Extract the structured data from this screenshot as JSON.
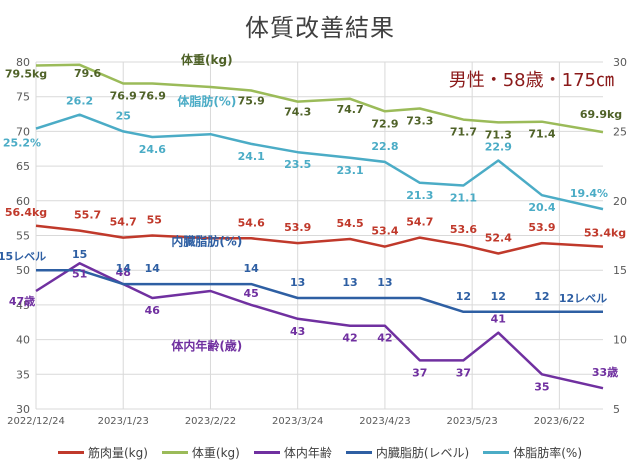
{
  "header": {
    "title": "体質改善結果",
    "subtitle": "男性・58歳・175㎝"
  },
  "colors": {
    "muscle": "#c0392b",
    "weight": "#9bbb59",
    "body_age": "#7030a0",
    "visceral": "#2e5fa3",
    "body_fat": "#4bacc6",
    "grid": "#d9d9d9",
    "axis_text": "#595959"
  },
  "chart_data": {
    "type": "line",
    "x_axis": {
      "ticks": [
        "2022/12/24",
        "2023/1/23",
        "2023/2/22",
        "2023/3/24",
        "2023/4/23",
        "2023/5/23",
        "2023/6/22"
      ],
      "range": [
        "2022/12/24",
        "2023/7/7"
      ]
    },
    "y_left": {
      "range": [
        30,
        80
      ],
      "ticks": [
        30,
        35,
        40,
        45,
        50,
        55,
        60,
        65,
        70,
        75,
        80
      ]
    },
    "y_right": {
      "range": [
        5,
        30
      ],
      "ticks": [
        5,
        10,
        15,
        20,
        25,
        30
      ]
    },
    "grid": true,
    "legend_position": "bottom",
    "series": [
      {
        "key": "muscle",
        "name": "筋肉量(kg)",
        "axis": "left",
        "x": [
          "2022/12/24",
          "2023/1/8",
          "2023/1/23",
          "2023/2/2",
          "2023/2/22",
          "2023/3/8",
          "2023/3/24",
          "2023/4/11",
          "2023/4/23",
          "2023/5/5",
          "2023/5/20",
          "2023/6/1",
          "2023/6/16",
          "2023/7/7"
        ],
        "values": [
          56.4,
          55.7,
          54.7,
          55,
          54.6,
          54.6,
          53.9,
          54.5,
          53.4,
          54.7,
          53.6,
          52.4,
          53.9,
          53.4
        ],
        "labels": [
          "56.4kg",
          "55.7",
          "54.7",
          "55",
          "",
          "54.6",
          "53.9",
          "54.5",
          "53.4",
          "54.7",
          "53.6",
          "52.4",
          "53.9",
          "53.4kg"
        ]
      },
      {
        "key": "weight",
        "name": "体重(kg)",
        "axis": "left",
        "annotation": "体重(kg)",
        "x": [
          "2022/12/24",
          "2023/1/8",
          "2023/1/23",
          "2023/2/2",
          "2023/2/22",
          "2023/3/8",
          "2023/3/24",
          "2023/4/11",
          "2023/4/23",
          "2023/5/5",
          "2023/5/20",
          "2023/6/1",
          "2023/6/16",
          "2023/7/7"
        ],
        "values": [
          79.5,
          79.6,
          76.9,
          76.9,
          76.4,
          75.9,
          74.3,
          74.7,
          72.9,
          73.3,
          71.7,
          71.3,
          71.4,
          69.9
        ],
        "labels": [
          "79.5kg",
          "79.6",
          "76.9",
          "76.9",
          "",
          "75.9",
          "74.3",
          "74.7",
          "72.9",
          "73.3",
          "71.7",
          "71.3",
          "71.4",
          "69.9kg"
        ]
      },
      {
        "key": "body_age",
        "name": "体内年齢",
        "axis": "left",
        "annotation": "体内年齢(歳)",
        "x": [
          "2022/12/24",
          "2023/1/8",
          "2023/1/23",
          "2023/2/2",
          "2023/2/22",
          "2023/3/8",
          "2023/3/24",
          "2023/4/11",
          "2023/4/23",
          "2023/5/5",
          "2023/5/20",
          "2023/6/1",
          "2023/6/16",
          "2023/7/7"
        ],
        "values": [
          47,
          51,
          48,
          46,
          47,
          45,
          43,
          42,
          42,
          37,
          37,
          41,
          35,
          33
        ],
        "labels": [
          "47歳",
          "51",
          "48",
          "46",
          "",
          "45",
          "43",
          "42",
          "42",
          "37",
          "37",
          "41",
          "35",
          "33歳"
        ]
      },
      {
        "key": "visceral",
        "name": "内臓脂肪(レベル)",
        "axis": "right",
        "annotation": "内臓脂肪(%)",
        "x": [
          "2022/12/24",
          "2023/1/8",
          "2023/1/23",
          "2023/2/2",
          "2023/2/22",
          "2023/3/8",
          "2023/3/24",
          "2023/4/11",
          "2023/4/23",
          "2023/5/5",
          "2023/5/20",
          "2023/6/1",
          "2023/6/16",
          "2023/7/7"
        ],
        "values": [
          15,
          15,
          14,
          14,
          14,
          14,
          13,
          13,
          13,
          13,
          12,
          12,
          12,
          12
        ],
        "labels": [
          "15レベル",
          "15",
          "14",
          "14",
          "",
          "14",
          "13",
          "13",
          "13",
          "",
          "12",
          "12",
          "12",
          "12レベル"
        ]
      },
      {
        "key": "body_fat",
        "name": "体脂肪率(%)",
        "axis": "right",
        "annotation": "体脂肪(%)",
        "x": [
          "2022/12/24",
          "2023/1/8",
          "2023/1/23",
          "2023/2/2",
          "2023/2/22",
          "2023/3/8",
          "2023/3/24",
          "2023/4/11",
          "2023/4/23",
          "2023/5/5",
          "2023/5/20",
          "2023/6/1",
          "2023/6/16",
          "2023/7/7"
        ],
        "values": [
          25.2,
          26.2,
          25,
          24.6,
          24.8,
          24.1,
          23.5,
          23.1,
          22.8,
          21.3,
          21.1,
          22.9,
          20.4,
          19.4
        ],
        "labels": [
          "25.2%",
          "26.2",
          "25",
          "24.6",
          "",
          "24.1",
          "23.5",
          "23.1",
          "22.8",
          "21.3",
          "21.1",
          "22.9",
          "20.4",
          "19.4%"
        ]
      }
    ],
    "legend_order": [
      "muscle",
      "weight",
      "body_age",
      "visceral",
      "body_fat"
    ]
  }
}
